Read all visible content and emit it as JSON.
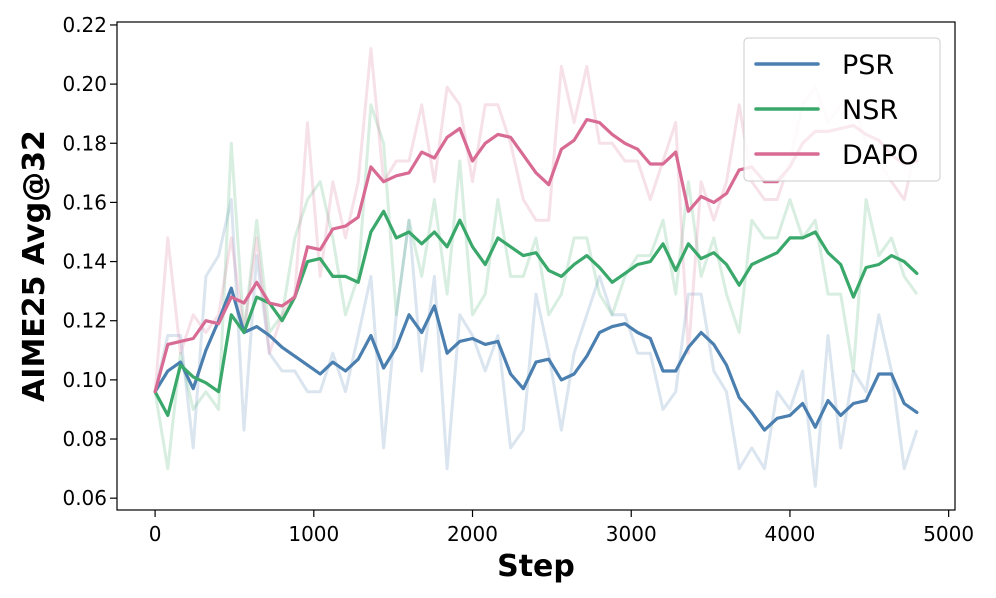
{
  "chart_data": {
    "type": "line",
    "xlabel": "Step",
    "ylabel": "AIME25 Avg@32",
    "xlim": [
      -240,
      5040
    ],
    "ylim": [
      0.056,
      0.221
    ],
    "xticks": [
      0,
      1000,
      2000,
      3000,
      4000,
      5000
    ],
    "xtick_labels": [
      "0",
      "1000",
      "2000",
      "3000",
      "4000",
      "5000"
    ],
    "yticks": [
      0.06,
      0.08,
      0.1,
      0.12,
      0.14,
      0.16,
      0.18,
      0.2,
      0.22
    ],
    "ytick_labels": [
      "0.06",
      "0.08",
      "0.10",
      "0.12",
      "0.14",
      "0.16",
      "0.18",
      "0.20",
      "0.22"
    ],
    "grid": false,
    "legend": "top-right",
    "x": [
      0,
      80,
      160,
      240,
      320,
      400,
      480,
      560,
      640,
      720,
      800,
      880,
      960,
      1040,
      1120,
      1200,
      1280,
      1360,
      1440,
      1520,
      1600,
      1680,
      1760,
      1840,
      1920,
      2000,
      2080,
      2160,
      2240,
      2320,
      2400,
      2480,
      2560,
      2640,
      2720,
      2800,
      2880,
      2960,
      3040,
      3120,
      3200,
      3280,
      3360,
      3440,
      3520,
      3600,
      3680,
      3760,
      3840,
      3920,
      4000,
      4080,
      4160,
      4240,
      4320,
      4400,
      4480,
      4560,
      4640,
      4720,
      4800
    ],
    "series": [
      {
        "name": "PSR",
        "color": "#4a7fb0",
        "values": [
          0.096,
          0.103,
          0.106,
          0.097,
          0.11,
          0.12,
          0.131,
          0.116,
          0.118,
          0.115,
          0.111,
          0.108,
          0.105,
          0.102,
          0.106,
          0.103,
          0.107,
          0.115,
          0.104,
          0.111,
          0.122,
          0.116,
          0.125,
          0.109,
          0.113,
          0.114,
          0.112,
          0.113,
          0.102,
          0.097,
          0.106,
          0.107,
          0.1,
          0.102,
          0.108,
          0.116,
          0.118,
          0.119,
          0.116,
          0.114,
          0.103,
          0.103,
          0.111,
          0.116,
          0.112,
          0.105,
          0.094,
          0.089,
          0.083,
          0.087,
          0.088,
          0.092,
          0.084,
          0.093,
          0.088,
          0.092,
          0.093,
          0.102,
          0.102,
          0.092,
          0.089
        ],
        "raw": [
          0.096,
          0.115,
          0.115,
          0.077,
          0.135,
          0.142,
          0.161,
          0.083,
          0.142,
          0.109,
          0.103,
          0.103,
          0.096,
          0.096,
          0.109,
          0.096,
          0.115,
          0.135,
          0.077,
          0.122,
          0.154,
          0.103,
          0.135,
          0.07,
          0.122,
          0.115,
          0.103,
          0.115,
          0.077,
          0.083,
          0.129,
          0.109,
          0.083,
          0.109,
          0.122,
          0.135,
          0.122,
          0.122,
          0.109,
          0.109,
          0.09,
          0.096,
          0.129,
          0.129,
          0.103,
          0.096,
          0.07,
          0.077,
          0.07,
          0.096,
          0.09,
          0.103,
          0.064,
          0.115,
          0.077,
          0.103,
          0.096,
          0.122,
          0.103,
          0.07,
          0.083
        ]
      },
      {
        "name": "NSR",
        "color": "#3aa86a",
        "values": [
          0.096,
          0.088,
          0.105,
          0.101,
          0.099,
          0.096,
          0.122,
          0.116,
          0.128,
          0.126,
          0.12,
          0.128,
          0.14,
          0.141,
          0.135,
          0.135,
          0.133,
          0.15,
          0.157,
          0.148,
          0.15,
          0.146,
          0.15,
          0.145,
          0.154,
          0.145,
          0.139,
          0.148,
          0.145,
          0.142,
          0.143,
          0.137,
          0.135,
          0.139,
          0.142,
          0.138,
          0.133,
          0.136,
          0.139,
          0.14,
          0.146,
          0.137,
          0.146,
          0.141,
          0.143,
          0.139,
          0.132,
          0.139,
          0.141,
          0.143,
          0.148,
          0.148,
          0.15,
          0.143,
          0.139,
          0.128,
          0.138,
          0.139,
          0.142,
          0.14,
          0.136
        ],
        "raw": [
          0.096,
          0.07,
          0.109,
          0.09,
          0.096,
          0.09,
          0.18,
          0.116,
          0.154,
          0.116,
          0.122,
          0.148,
          0.161,
          0.167,
          0.148,
          0.122,
          0.135,
          0.193,
          0.18,
          0.122,
          0.154,
          0.135,
          0.161,
          0.129,
          0.174,
          0.122,
          0.129,
          0.161,
          0.135,
          0.135,
          0.148,
          0.122,
          0.129,
          0.148,
          0.148,
          0.129,
          0.122,
          0.135,
          0.142,
          0.142,
          0.154,
          0.129,
          0.167,
          0.135,
          0.148,
          0.129,
          0.116,
          0.154,
          0.148,
          0.148,
          0.161,
          0.148,
          0.154,
          0.129,
          0.129,
          0.103,
          0.161,
          0.142,
          0.148,
          0.135,
          0.129
        ]
      },
      {
        "name": "DAPO",
        "color": "#d86b93",
        "values": [
          0.096,
          0.112,
          0.113,
          0.114,
          0.12,
          0.119,
          0.128,
          0.126,
          0.133,
          0.126,
          0.125,
          0.128,
          0.145,
          0.144,
          0.151,
          0.152,
          0.155,
          0.172,
          0.167,
          0.169,
          0.17,
          0.177,
          0.175,
          0.182,
          0.185,
          0.174,
          0.18,
          0.183,
          0.182,
          0.176,
          0.17,
          0.166,
          0.178,
          0.181,
          0.188,
          0.187,
          0.183,
          0.18,
          0.178,
          0.173,
          0.173,
          0.177,
          0.157,
          0.162,
          0.16,
          0.163,
          0.171,
          0.172,
          0.167,
          0.167,
          0.172,
          0.18,
          0.184,
          0.184,
          0.185,
          0.186,
          0.183,
          0.181,
          0.176,
          0.173,
          0.174
        ],
        "raw": [
          0.096,
          0.148,
          0.109,
          0.122,
          0.116,
          0.122,
          0.148,
          0.116,
          0.148,
          0.109,
          0.122,
          0.129,
          0.187,
          0.135,
          0.167,
          0.148,
          0.167,
          0.212,
          0.167,
          0.174,
          0.174,
          0.193,
          0.167,
          0.199,
          0.193,
          0.167,
          0.193,
          0.193,
          0.18,
          0.161,
          0.154,
          0.154,
          0.206,
          0.187,
          0.206,
          0.18,
          0.18,
          0.174,
          0.174,
          0.161,
          0.174,
          0.187,
          0.109,
          0.167,
          0.154,
          0.167,
          0.193,
          0.167,
          0.161,
          0.161,
          0.174,
          0.193,
          0.199,
          0.187,
          0.193,
          0.193,
          0.18,
          0.174,
          0.167,
          0.161,
          0.18
        ]
      }
    ]
  }
}
